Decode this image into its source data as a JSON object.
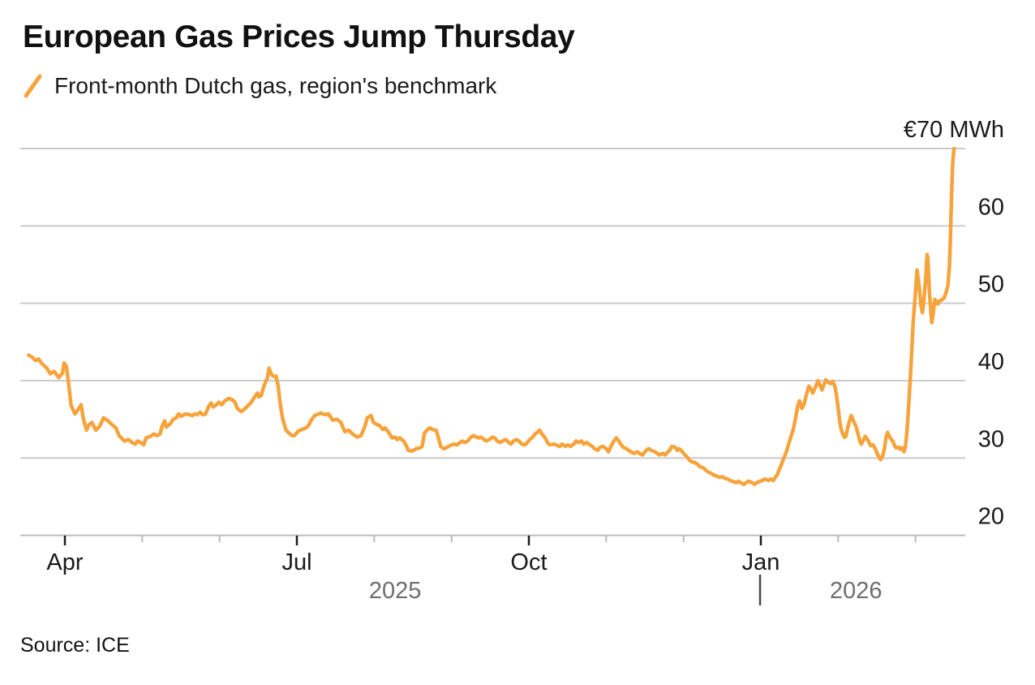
{
  "header": {
    "title": "European Gas Prices Jump Thursday",
    "legend_label": "Front-month Dutch gas, region's benchmark"
  },
  "footer": {
    "source": "Source: ICE"
  },
  "colors": {
    "line": "#F7A33C",
    "grid": "#CBCBCB",
    "axis": "#BDBDBD",
    "tick_major": "#1A1A1A",
    "tick_minor": "#B9B9B9",
    "text": "#1A1A1A",
    "year_text": "#6E6E6E",
    "divider": "#4A4A4A"
  },
  "chart_data": {
    "type": "line",
    "title": "European Gas Prices Jump Thursday",
    "series_name": "Front-month Dutch gas (TTF), region's benchmark",
    "unit": "EUR/MWh",
    "grid": "on",
    "y_axis": {
      "side": "right",
      "range": [
        20,
        70
      ],
      "ticks": [
        60,
        50,
        40,
        30,
        20
      ],
      "top_label": "€70 MWh"
    },
    "x_axis": {
      "note": "m = months since 2025-04-01 (Apr=0, Jul=3, Oct=6, Jan=9)",
      "major_ticks": [
        {
          "m": 0,
          "label": "Apr"
        },
        {
          "m": 3,
          "label": "Jul"
        },
        {
          "m": 6,
          "label": "Oct"
        },
        {
          "m": 9,
          "label": "Jan"
        }
      ],
      "minor_ticks_m": [
        1,
        2,
        4,
        5,
        7,
        8,
        10,
        11
      ],
      "years": [
        {
          "label": "2025",
          "m": 4.27
        },
        {
          "label": "2026",
          "m": 10.23
        }
      ],
      "divider_m": 8.99,
      "range_m": [
        -0.55,
        11.65
      ]
    },
    "points": [
      [
        -0.47,
        43.3
      ],
      [
        -0.42,
        43.0
      ],
      [
        -0.38,
        42.6
      ],
      [
        -0.34,
        42.8
      ],
      [
        -0.29,
        42.1
      ],
      [
        -0.24,
        41.7
      ],
      [
        -0.19,
        40.9
      ],
      [
        -0.14,
        41.2
      ],
      [
        -0.08,
        40.4
      ],
      [
        -0.03,
        41.0
      ],
      [
        -0.01,
        42.3
      ],
      [
        0.02,
        41.8
      ],
      [
        0.05,
        39.5
      ],
      [
        0.08,
        36.8
      ],
      [
        0.13,
        35.7
      ],
      [
        0.18,
        36.4
      ],
      [
        0.21,
        36.9
      ],
      [
        0.24,
        35.0
      ],
      [
        0.28,
        33.6
      ],
      [
        0.31,
        34.3
      ],
      [
        0.35,
        34.6
      ],
      [
        0.4,
        33.6
      ],
      [
        0.45,
        34.1
      ],
      [
        0.5,
        35.2
      ],
      [
        0.56,
        34.8
      ],
      [
        0.61,
        34.3
      ],
      [
        0.66,
        33.9
      ],
      [
        0.7,
        32.9
      ],
      [
        0.73,
        32.6
      ],
      [
        0.77,
        32.2
      ],
      [
        0.82,
        32.4
      ],
      [
        0.87,
        32.0
      ],
      [
        0.91,
        31.8
      ],
      [
        0.94,
        32.2
      ],
      [
        0.98,
        32.0
      ],
      [
        1.02,
        31.7
      ],
      [
        1.05,
        32.6
      ],
      [
        1.08,
        32.7
      ],
      [
        1.12,
        32.9
      ],
      [
        1.15,
        33.1
      ],
      [
        1.19,
        32.9
      ],
      [
        1.23,
        33.1
      ],
      [
        1.26,
        34.2
      ],
      [
        1.29,
        34.8
      ],
      [
        1.31,
        34.0
      ],
      [
        1.36,
        34.4
      ],
      [
        1.4,
        35.0
      ],
      [
        1.44,
        35.2
      ],
      [
        1.47,
        35.7
      ],
      [
        1.5,
        35.4
      ],
      [
        1.54,
        35.6
      ],
      [
        1.57,
        35.7
      ],
      [
        1.61,
        35.6
      ],
      [
        1.65,
        35.5
      ],
      [
        1.68,
        35.7
      ],
      [
        1.71,
        35.6
      ],
      [
        1.75,
        35.9
      ],
      [
        1.78,
        35.6
      ],
      [
        1.82,
        35.7
      ],
      [
        1.86,
        36.7
      ],
      [
        1.89,
        37.1
      ],
      [
        1.92,
        36.6
      ],
      [
        1.96,
        36.9
      ],
      [
        1.99,
        37.2
      ],
      [
        2.03,
        36.9
      ],
      [
        2.07,
        37.4
      ],
      [
        2.12,
        37.7
      ],
      [
        2.17,
        37.5
      ],
      [
        2.2,
        37.2
      ],
      [
        2.23,
        36.4
      ],
      [
        2.28,
        36.0
      ],
      [
        2.31,
        36.2
      ],
      [
        2.34,
        36.5
      ],
      [
        2.38,
        36.9
      ],
      [
        2.41,
        37.2
      ],
      [
        2.44,
        37.7
      ],
      [
        2.49,
        38.4
      ],
      [
        2.51,
        37.9
      ],
      [
        2.54,
        38.1
      ],
      [
        2.57,
        39.2
      ],
      [
        2.59,
        39.7
      ],
      [
        2.62,
        40.4
      ],
      [
        2.64,
        41.6
      ],
      [
        2.66,
        41.1
      ],
      [
        2.68,
        40.7
      ],
      [
        2.71,
        40.5
      ],
      [
        2.73,
        40.6
      ],
      [
        2.76,
        39.2
      ],
      [
        2.78,
        37.4
      ],
      [
        2.81,
        35.4
      ],
      [
        2.83,
        34.6
      ],
      [
        2.86,
        33.6
      ],
      [
        2.91,
        33.1
      ],
      [
        2.94,
        32.9
      ],
      [
        2.97,
        32.9
      ],
      [
        3.01,
        33.4
      ],
      [
        3.04,
        33.6
      ],
      [
        3.07,
        33.7
      ],
      [
        3.12,
        33.9
      ],
      [
        3.15,
        34.2
      ],
      [
        3.18,
        34.8
      ],
      [
        3.23,
        35.5
      ],
      [
        3.31,
        35.8
      ],
      [
        3.36,
        35.6
      ],
      [
        3.41,
        35.7
      ],
      [
        3.46,
        34.9
      ],
      [
        3.52,
        35.0
      ],
      [
        3.57,
        34.6
      ],
      [
        3.62,
        33.4
      ],
      [
        3.67,
        33.6
      ],
      [
        3.72,
        33.1
      ],
      [
        3.78,
        32.7
      ],
      [
        3.83,
        32.9
      ],
      [
        3.88,
        34.1
      ],
      [
        3.91,
        35.2
      ],
      [
        3.96,
        35.5
      ],
      [
        3.99,
        34.6
      ],
      [
        4.04,
        34.3
      ],
      [
        4.07,
        34.2
      ],
      [
        4.11,
        33.7
      ],
      [
        4.14,
        33.9
      ],
      [
        4.18,
        33.4
      ],
      [
        4.23,
        32.6
      ],
      [
        4.27,
        32.7
      ],
      [
        4.3,
        32.4
      ],
      [
        4.33,
        32.6
      ],
      [
        4.38,
        32.2
      ],
      [
        4.41,
        31.7
      ],
      [
        4.44,
        31.0
      ],
      [
        4.48,
        30.9
      ],
      [
        4.51,
        31.0
      ],
      [
        4.54,
        31.2
      ],
      [
        4.59,
        31.3
      ],
      [
        4.62,
        31.5
      ],
      [
        4.65,
        33.2
      ],
      [
        4.69,
        33.7
      ],
      [
        4.72,
        33.9
      ],
      [
        4.75,
        33.7
      ],
      [
        4.8,
        33.6
      ],
      [
        4.83,
        32.6
      ],
      [
        4.86,
        31.5
      ],
      [
        4.9,
        31.2
      ],
      [
        4.93,
        31.3
      ],
      [
        4.96,
        31.5
      ],
      [
        5.0,
        31.7
      ],
      [
        5.04,
        31.8
      ],
      [
        5.07,
        31.7
      ],
      [
        5.11,
        32.0
      ],
      [
        5.14,
        32.2
      ],
      [
        5.17,
        32.0
      ],
      [
        5.21,
        32.2
      ],
      [
        5.25,
        32.7
      ],
      [
        5.28,
        32.9
      ],
      [
        5.32,
        32.7
      ],
      [
        5.35,
        32.6
      ],
      [
        5.38,
        32.7
      ],
      [
        5.42,
        32.4
      ],
      [
        5.45,
        32.2
      ],
      [
        5.49,
        32.4
      ],
      [
        5.53,
        32.7
      ],
      [
        5.56,
        32.6
      ],
      [
        5.59,
        32.2
      ],
      [
        5.63,
        32.0
      ],
      [
        5.66,
        32.2
      ],
      [
        5.7,
        32.4
      ],
      [
        5.74,
        32.0
      ],
      [
        5.77,
        31.8
      ],
      [
        5.8,
        32.2
      ],
      [
        5.84,
        32.4
      ],
      [
        5.87,
        32.2
      ],
      [
        5.91,
        31.8
      ],
      [
        5.95,
        31.7
      ],
      [
        5.98,
        32.0
      ],
      [
        6.01,
        32.4
      ],
      [
        6.05,
        32.7
      ],
      [
        6.08,
        33.1
      ],
      [
        6.12,
        33.4
      ],
      [
        6.14,
        33.6
      ],
      [
        6.17,
        33.1
      ],
      [
        6.21,
        32.6
      ],
      [
        6.24,
        32.0
      ],
      [
        6.27,
        31.7
      ],
      [
        6.32,
        31.8
      ],
      [
        6.35,
        31.7
      ],
      [
        6.4,
        31.5
      ],
      [
        6.43,
        31.8
      ],
      [
        6.47,
        31.5
      ],
      [
        6.5,
        31.7
      ],
      [
        6.54,
        31.5
      ],
      [
        6.58,
        31.8
      ],
      [
        6.61,
        32.2
      ],
      [
        6.64,
        32.0
      ],
      [
        6.68,
        32.2
      ],
      [
        6.71,
        31.8
      ],
      [
        6.75,
        32.0
      ],
      [
        6.79,
        31.7
      ],
      [
        6.82,
        31.5
      ],
      [
        6.85,
        31.2
      ],
      [
        6.89,
        31.0
      ],
      [
        6.92,
        31.4
      ],
      [
        6.96,
        31.5
      ],
      [
        7.0,
        31.2
      ],
      [
        7.03,
        30.8
      ],
      [
        7.06,
        31.5
      ],
      [
        7.1,
        32.2
      ],
      [
        7.13,
        32.6
      ],
      [
        7.15,
        32.4
      ],
      [
        7.19,
        31.8
      ],
      [
        7.22,
        31.4
      ],
      [
        7.26,
        31.2
      ],
      [
        7.29,
        31.0
      ],
      [
        7.32,
        30.8
      ],
      [
        7.36,
        30.6
      ],
      [
        7.4,
        30.8
      ],
      [
        7.43,
        30.6
      ],
      [
        7.47,
        30.4
      ],
      [
        7.5,
        30.8
      ],
      [
        7.53,
        31.1
      ],
      [
        7.55,
        31.2
      ],
      [
        7.58,
        31.0
      ],
      [
        7.63,
        30.8
      ],
      [
        7.66,
        30.6
      ],
      [
        7.69,
        30.4
      ],
      [
        7.73,
        30.6
      ],
      [
        7.76,
        30.4
      ],
      [
        7.78,
        30.6
      ],
      [
        7.82,
        31.0
      ],
      [
        7.85,
        31.5
      ],
      [
        7.89,
        31.4
      ],
      [
        7.92,
        31.0
      ],
      [
        7.94,
        31.2
      ],
      [
        7.97,
        31.0
      ],
      [
        8.0,
        30.6
      ],
      [
        8.05,
        30.1
      ],
      [
        8.08,
        29.7
      ],
      [
        8.11,
        29.5
      ],
      [
        8.15,
        29.4
      ],
      [
        8.18,
        29.2
      ],
      [
        8.21,
        28.9
      ],
      [
        8.26,
        28.7
      ],
      [
        8.29,
        28.4
      ],
      [
        8.32,
        28.2
      ],
      [
        8.36,
        28.0
      ],
      [
        8.39,
        27.8
      ],
      [
        8.42,
        27.7
      ],
      [
        8.47,
        27.5
      ],
      [
        8.5,
        27.6
      ],
      [
        8.53,
        27.4
      ],
      [
        8.57,
        27.3
      ],
      [
        8.6,
        27.1
      ],
      [
        8.63,
        27.0
      ],
      [
        8.68,
        26.8
      ],
      [
        8.71,
        27.0
      ],
      [
        8.74,
        26.8
      ],
      [
        8.78,
        26.6
      ],
      [
        8.81,
        26.8
      ],
      [
        8.84,
        27.0
      ],
      [
        8.89,
        26.8
      ],
      [
        8.92,
        26.6
      ],
      [
        8.95,
        26.8
      ],
      [
        8.99,
        27.0
      ],
      [
        9.02,
        27.1
      ],
      [
        9.05,
        27.3
      ],
      [
        9.1,
        27.1
      ],
      [
        9.13,
        27.3
      ],
      [
        9.16,
        27.1
      ],
      [
        9.18,
        27.4
      ],
      [
        9.21,
        27.8
      ],
      [
        9.23,
        28.3
      ],
      [
        9.26,
        29.0
      ],
      [
        9.29,
        29.8
      ],
      [
        9.33,
        30.8
      ],
      [
        9.36,
        31.8
      ],
      [
        9.39,
        32.8
      ],
      [
        9.42,
        33.7
      ],
      [
        9.45,
        35.2
      ],
      [
        9.48,
        36.9
      ],
      [
        9.5,
        37.4
      ],
      [
        9.53,
        36.4
      ],
      [
        9.56,
        37.0
      ],
      [
        9.59,
        38.2
      ],
      [
        9.62,
        39.3
      ],
      [
        9.65,
        38.9
      ],
      [
        9.67,
        38.4
      ],
      [
        9.7,
        39.0
      ],
      [
        9.74,
        40.0
      ],
      [
        9.77,
        39.3
      ],
      [
        9.79,
        38.8
      ],
      [
        9.82,
        39.6
      ],
      [
        9.84,
        40.1
      ],
      [
        9.87,
        39.8
      ],
      [
        9.9,
        39.6
      ],
      [
        9.93,
        39.9
      ],
      [
        9.96,
        39.2
      ],
      [
        9.98,
        38.0
      ],
      [
        10.0,
        36.5
      ],
      [
        10.02,
        34.8
      ],
      [
        10.04,
        33.7
      ],
      [
        10.06,
        33.1
      ],
      [
        10.08,
        32.7
      ],
      [
        10.1,
        32.8
      ],
      [
        10.12,
        33.8
      ],
      [
        10.15,
        34.9
      ],
      [
        10.17,
        35.5
      ],
      [
        10.19,
        35.0
      ],
      [
        10.21,
        34.5
      ],
      [
        10.23,
        34.1
      ],
      [
        10.26,
        33.0
      ],
      [
        10.28,
        32.2
      ],
      [
        10.3,
        31.8
      ],
      [
        10.33,
        32.4
      ],
      [
        10.35,
        32.8
      ],
      [
        10.39,
        32.2
      ],
      [
        10.42,
        31.6
      ],
      [
        10.45,
        31.7
      ],
      [
        10.48,
        31.2
      ],
      [
        10.5,
        30.7
      ],
      [
        10.53,
        30.0
      ],
      [
        10.55,
        29.8
      ],
      [
        10.58,
        30.4
      ],
      [
        10.6,
        31.3
      ],
      [
        10.62,
        32.7
      ],
      [
        10.64,
        33.3
      ],
      [
        10.66,
        32.8
      ],
      [
        10.68,
        32.5
      ],
      [
        10.71,
        32.1
      ],
      [
        10.73,
        31.6
      ],
      [
        10.75,
        31.3
      ],
      [
        10.79,
        31.4
      ],
      [
        10.81,
        31.1
      ],
      [
        10.83,
        31.3
      ],
      [
        10.85,
        30.8
      ],
      [
        10.87,
        31.5
      ],
      [
        10.89,
        33.5
      ],
      [
        10.91,
        36.5
      ],
      [
        10.93,
        39.8
      ],
      [
        10.95,
        43.5
      ],
      [
        10.97,
        47.5
      ],
      [
        11.0,
        51.5
      ],
      [
        11.02,
        54.3
      ],
      [
        11.05,
        52.0
      ],
      [
        11.07,
        49.8
      ],
      [
        11.09,
        48.8
      ],
      [
        11.11,
        50.5
      ],
      [
        11.13,
        53.0
      ],
      [
        11.15,
        56.3
      ],
      [
        11.16,
        55.8
      ],
      [
        11.18,
        51.5
      ],
      [
        11.21,
        47.5
      ],
      [
        11.23,
        48.8
      ],
      [
        11.25,
        50.5
      ],
      [
        11.27,
        50.2
      ],
      [
        11.29,
        49.9
      ],
      [
        11.31,
        50.3
      ],
      [
        11.33,
        50.4
      ],
      [
        11.35,
        50.5
      ],
      [
        11.37,
        50.7
      ],
      [
        11.39,
        51.2
      ],
      [
        11.42,
        52.3
      ],
      [
        11.44,
        55.0
      ],
      [
        11.45,
        58.0
      ],
      [
        11.46,
        61.5
      ],
      [
        11.47,
        65.0
      ],
      [
        11.48,
        67.8
      ],
      [
        11.49,
        69.3
      ],
      [
        11.5,
        70.0
      ]
    ]
  }
}
